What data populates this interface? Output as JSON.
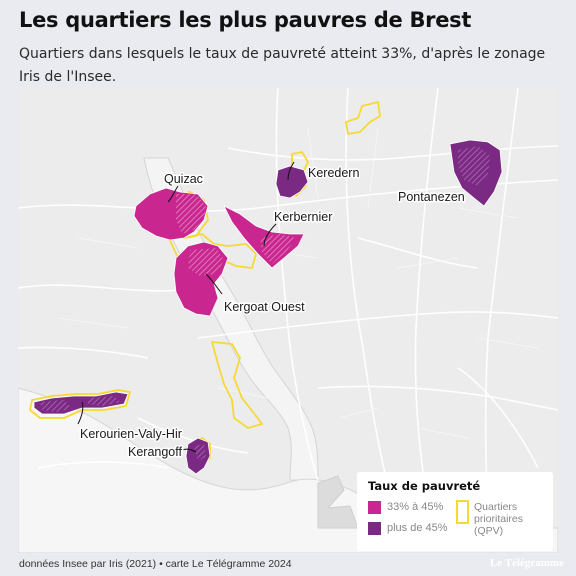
{
  "title": "Les quartiers les plus pauvres de Brest",
  "subtitle": "Quartiers dans lesquels le taux de pauvreté atteint 33%, d'après le zonage Iris de l'Insee.",
  "map": {
    "labels": {
      "quizac": "Quizac",
      "keredern": "Keredern",
      "kerbernier": "Kerbernier",
      "kergoat_ouest": "Kergoat Ouest",
      "pontanezen": "Pontanezen",
      "kerourien": "Kerourien-Valy-Hir",
      "kerangoff": "Kerangoff"
    },
    "colors": {
      "rate_33_45": "#c9278f",
      "rate_over_45": "#7b2a83",
      "qpv_outline": "#f6d934",
      "water": "#f6f6f6",
      "land": "#ececec"
    }
  },
  "legend": {
    "title": "Taux de pauvreté",
    "item1": "33% à 45%",
    "item2": "plus de 45%",
    "qpv": "Quartiers prioritaires (QPV)"
  },
  "source": "données Insee par Iris (2021) • carte Le Télégramme 2024",
  "brand": "Le Télégramme"
}
